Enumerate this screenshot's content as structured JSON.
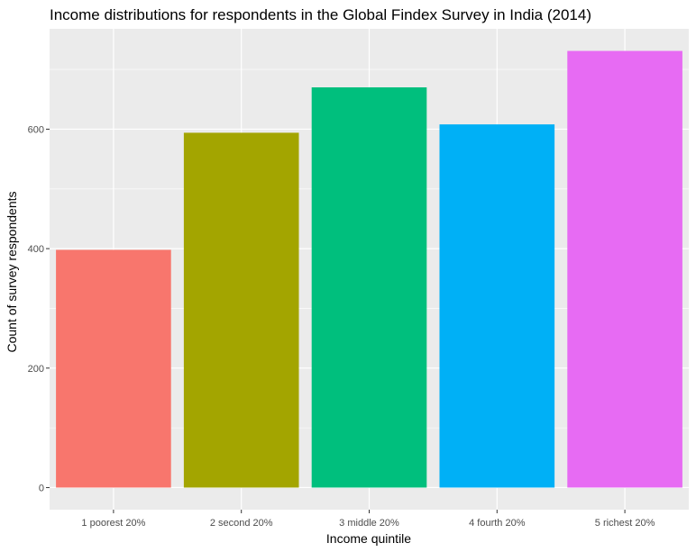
{
  "chart_data": {
    "type": "bar",
    "title": "Income distributions for respondents in the Global Findex Survey in India (2014)",
    "xlabel": "Income quintile",
    "ylabel": "Count of survey respondents",
    "categories": [
      "1 poorest 20%",
      "2 second 20%",
      "3 middle 20%",
      "4 fourth 20%",
      "5 richest 20%"
    ],
    "values": [
      398,
      594,
      670,
      608,
      731
    ],
    "colors": [
      "#F8766D",
      "#A3A500",
      "#00BF7D",
      "#00B0F6",
      "#E76BF3"
    ],
    "yticks": [
      0,
      200,
      400,
      600
    ],
    "ylim": [
      -37,
      768
    ],
    "grid": true,
    "panel_background": "#EBEBEB",
    "gridline_color": "#FFFFFF"
  }
}
